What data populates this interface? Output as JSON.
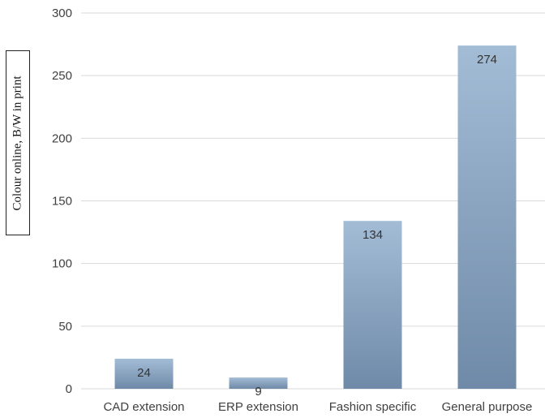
{
  "side_note": "Colour online, B/W in print",
  "colors": {
    "bar_top": "#a3bcd6",
    "bar_bottom": "#6f8aa8",
    "grid": "#d9d9d9",
    "text": "#404040"
  },
  "chart_data": {
    "type": "bar",
    "categories": [
      "CAD extension",
      "ERP extension",
      "Fashion specific",
      "General purpose"
    ],
    "values": [
      24,
      9,
      134,
      274
    ],
    "data_labels": [
      "24",
      "9",
      "134",
      "274"
    ],
    "title": "",
    "xlabel": "",
    "ylabel": "",
    "ylim": [
      0,
      300
    ],
    "yticks": [
      0,
      50,
      100,
      150,
      200,
      250,
      300
    ],
    "ytick_labels": [
      "0",
      "50",
      "100",
      "150",
      "200",
      "250",
      "300"
    ],
    "grid": true,
    "legend": "none"
  }
}
